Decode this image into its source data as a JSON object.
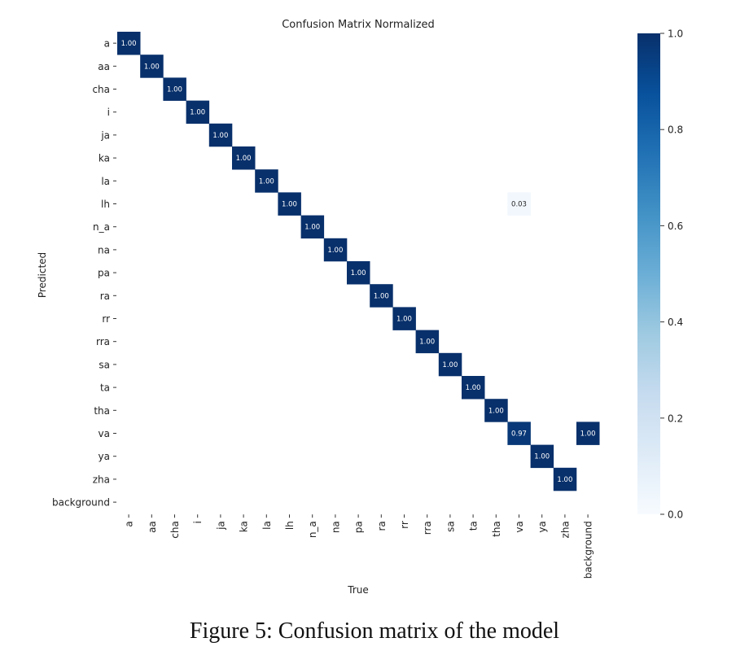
{
  "caption": "Figure 5: Confusion matrix of the model",
  "chart_data": {
    "type": "heatmap",
    "title": "Confusion Matrix Normalized",
    "xlabel": "True",
    "ylabel": "Predicted",
    "x_labels": [
      "a",
      "aa",
      "cha",
      "i",
      "ja",
      "ka",
      "la",
      "lh",
      "n_a",
      "na",
      "pa",
      "ra",
      "rr",
      "rra",
      "sa",
      "ta",
      "tha",
      "va",
      "ya",
      "zha",
      "background"
    ],
    "y_labels": [
      "a",
      "aa",
      "cha",
      "i",
      "ja",
      "ka",
      "la",
      "lh",
      "n_a",
      "na",
      "pa",
      "ra",
      "rr",
      "rra",
      "sa",
      "ta",
      "tha",
      "va",
      "ya",
      "zha",
      "background"
    ],
    "cells": [
      {
        "row": "a",
        "col": "a",
        "value": 1.0,
        "label": "1.00"
      },
      {
        "row": "aa",
        "col": "aa",
        "value": 1.0,
        "label": "1.00"
      },
      {
        "row": "cha",
        "col": "cha",
        "value": 1.0,
        "label": "1.00"
      },
      {
        "row": "i",
        "col": "i",
        "value": 1.0,
        "label": "1.00"
      },
      {
        "row": "ja",
        "col": "ja",
        "value": 1.0,
        "label": "1.00"
      },
      {
        "row": "ka",
        "col": "ka",
        "value": 1.0,
        "label": "1.00"
      },
      {
        "row": "la",
        "col": "la",
        "value": 1.0,
        "label": "1.00"
      },
      {
        "row": "lh",
        "col": "lh",
        "value": 1.0,
        "label": "1.00"
      },
      {
        "row": "lh",
        "col": "va",
        "value": 0.03,
        "label": "0.03"
      },
      {
        "row": "n_a",
        "col": "n_a",
        "value": 1.0,
        "label": "1.00"
      },
      {
        "row": "na",
        "col": "na",
        "value": 1.0,
        "label": "1.00"
      },
      {
        "row": "pa",
        "col": "pa",
        "value": 1.0,
        "label": "1.00"
      },
      {
        "row": "ra",
        "col": "ra",
        "value": 1.0,
        "label": "1.00"
      },
      {
        "row": "rr",
        "col": "rr",
        "value": 1.0,
        "label": "1.00"
      },
      {
        "row": "rra",
        "col": "rra",
        "value": 1.0,
        "label": "1.00"
      },
      {
        "row": "sa",
        "col": "sa",
        "value": 1.0,
        "label": "1.00"
      },
      {
        "row": "ta",
        "col": "ta",
        "value": 1.0,
        "label": "1.00"
      },
      {
        "row": "tha",
        "col": "tha",
        "value": 1.0,
        "label": "1.00"
      },
      {
        "row": "va",
        "col": "va",
        "value": 0.97,
        "label": "0.97"
      },
      {
        "row": "va",
        "col": "background",
        "value": 1.0,
        "label": "1.00"
      },
      {
        "row": "ya",
        "col": "ya",
        "value": 1.0,
        "label": "1.00"
      },
      {
        "row": "zha",
        "col": "zha",
        "value": 1.0,
        "label": "1.00"
      }
    ],
    "colorbar": {
      "range": [
        0.0,
        1.0
      ],
      "ticks": [
        "0.0",
        "0.2",
        "0.4",
        "0.6",
        "0.8",
        "1.0"
      ],
      "colors": [
        "#f7fbff",
        "#deebf7",
        "#c6dbef",
        "#9ecae1",
        "#6baed6",
        "#4292c6",
        "#2171b5",
        "#08519c",
        "#08306b"
      ]
    }
  }
}
